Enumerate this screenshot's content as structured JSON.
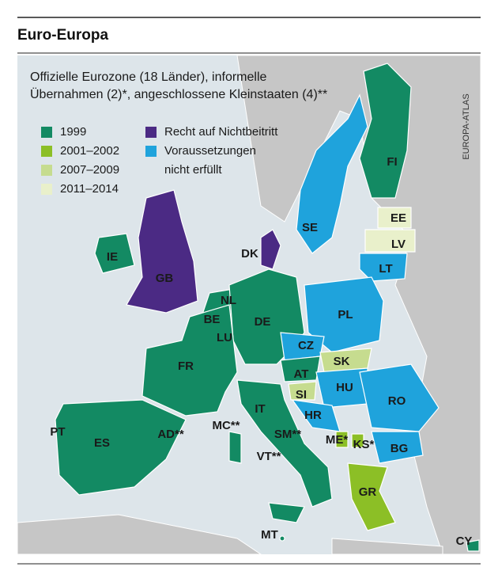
{
  "header": {
    "title": "Euro-Europa"
  },
  "map": {
    "subtitle_lines": [
      "Offizielle Eurozone (18 Länder), informelle",
      "Übernahmen (2)*, angeschlossene Kleinstaaten (4)**"
    ],
    "source": "EUROPA-ATLAS",
    "legend": [
      {
        "lines": [
          "1999"
        ],
        "color": "#138a63"
      },
      {
        "lines": [
          "2001–2002"
        ],
        "color": "#8cbf26"
      },
      {
        "lines": [
          "2007–2009"
        ],
        "color": "#c6dc8f"
      },
      {
        "lines": [
          "2011–2014"
        ],
        "color": "#e9f0cb"
      },
      {
        "lines": [
          "Recht auf Nichtbeitritt"
        ],
        "color": "#4b2a84"
      },
      {
        "lines": [
          "Voraussetzungen",
          "nicht erfüllt"
        ],
        "color": "#1fa3dc"
      }
    ],
    "country_labels": [
      "FI",
      "SE",
      "EE",
      "LV",
      "LT",
      "IE",
      "GB",
      "DK",
      "NL",
      "BE",
      "LU",
      "DE",
      "FR",
      "PL",
      "CZ",
      "SK",
      "AT",
      "SI",
      "HU",
      "HR",
      "RO",
      "IT",
      "PT",
      "ES",
      "AD**",
      "MC**",
      "SM**",
      "VT**",
      "ME*",
      "KS*",
      "BG",
      "GR",
      "MT",
      "CY"
    ]
  }
}
